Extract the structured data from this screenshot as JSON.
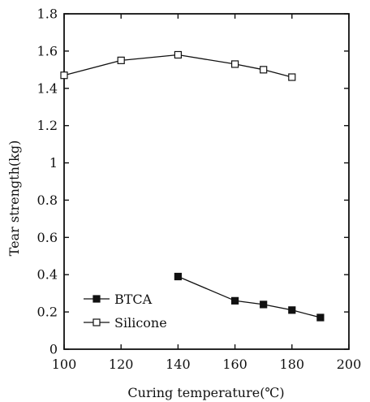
{
  "chart_data": {
    "type": "line",
    "xlabel": "Curing temperature(℃)",
    "ylabel": "Tear strength(kg)",
    "xlim": [
      100,
      200
    ],
    "ylim": [
      0,
      1.8
    ],
    "x_ticks": [
      "100",
      "120",
      "140",
      "160",
      "180",
      "200"
    ],
    "y_ticks": [
      "0",
      "0.2",
      "0.4",
      "0.6",
      "0.8",
      "1",
      "1.2",
      "1.4",
      "1.6",
      "1.8"
    ],
    "grid": false,
    "legend_position": "bottom-left",
    "series": [
      {
        "name": "BTCA",
        "marker": "filled-square",
        "x": [
          140,
          160,
          170,
          180,
          190
        ],
        "y": [
          0.39,
          0.26,
          0.24,
          0.21,
          0.17
        ]
      },
      {
        "name": "Silicone",
        "marker": "open-square",
        "x": [
          100,
          120,
          140,
          160,
          170,
          180
        ],
        "y": [
          1.47,
          1.55,
          1.58,
          1.53,
          1.5,
          1.46
        ]
      }
    ]
  }
}
